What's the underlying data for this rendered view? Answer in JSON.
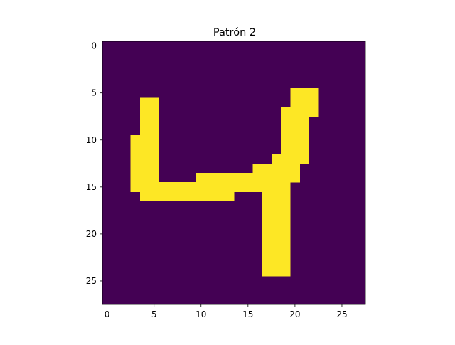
{
  "chart_data": {
    "type": "heatmap",
    "title": "Patrón 2",
    "xlabel": "",
    "ylabel": "",
    "grid": false,
    "xlim": [
      -0.5,
      27.5
    ],
    "ylim": [
      27.5,
      -0.5
    ],
    "x_ticks": [
      0,
      5,
      10,
      15,
      20,
      25
    ],
    "y_ticks": [
      0,
      5,
      10,
      15,
      20,
      25
    ],
    "colors": {
      "background": "#440154",
      "foreground": "#fde725"
    },
    "matrix": [
      "0000000000000000000000000000",
      "0000000000000000000000000000",
      "0000000000000000000000000000",
      "0000000000000000000000000000",
      "0000000000000000000000000000",
      "0000000000000000000011100000",
      "0000110000000000000011100000",
      "0000110000000000000111100000",
      "0000110000000000000111000000",
      "0000110000000000000111000000",
      "0001110000000000000111000000",
      "0001110000000000000111000000",
      "0001110000000000001111000000",
      "0001110000000000111110000000",
      "0001110000111111111110000000",
      "0001111111111111111100000000",
      "0000111111111100011100000000",
      "0000000000000000011100000000",
      "0000000000000000011100000000",
      "0000000000000000011100000000",
      "0000000000000000011100000000",
      "0000000000000000011100000000",
      "0000000000000000011100000000",
      "0000000000000000011100000000",
      "0000000000000000011100000000",
      "0000000000000000000000000000",
      "0000000000000000000000000000",
      "0000000000000000000000000000"
    ]
  }
}
